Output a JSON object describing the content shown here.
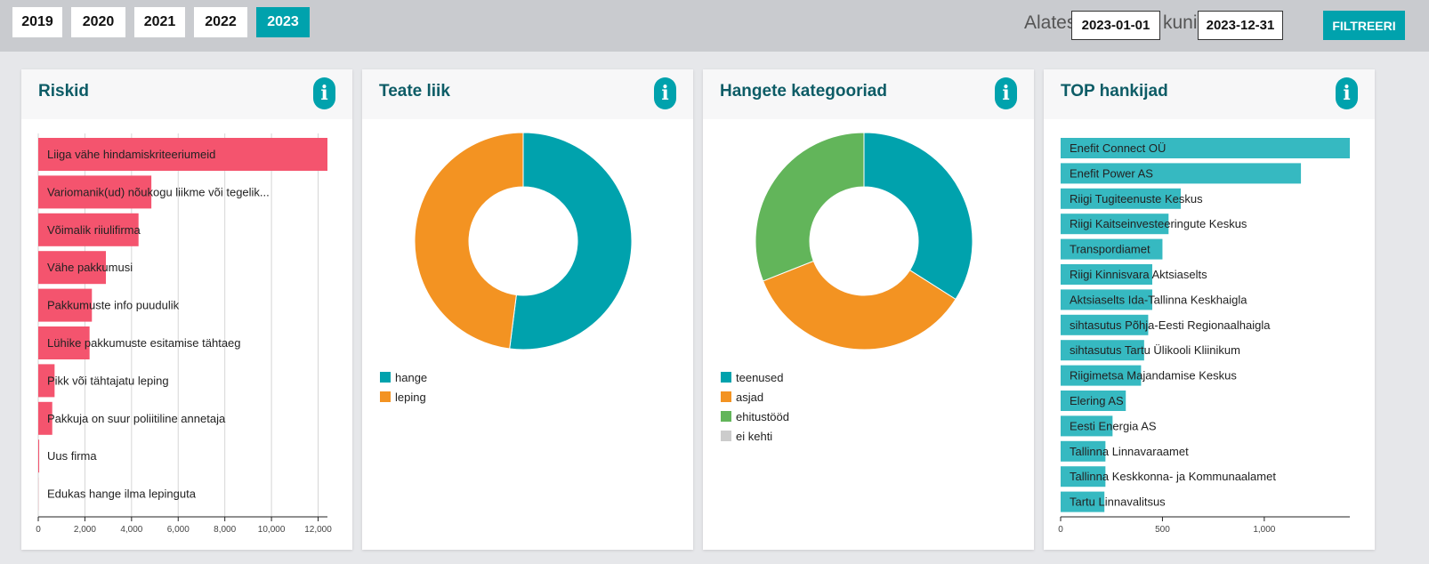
{
  "years": [
    "2019",
    "2020",
    "2021",
    "2022",
    "2023"
  ],
  "active_year": "2023",
  "filter": {
    "from_label": "Alates",
    "from_value": "2023-01-01",
    "to_label": "kuni",
    "to_value": "2023-12-31",
    "button": "FILTREERI"
  },
  "cards": {
    "risks": {
      "title": "Riskid",
      "info": "i"
    },
    "notice_type": {
      "title": "Teate liik",
      "info": "i"
    },
    "categories": {
      "title": "Hangete kategooriad",
      "info": "i"
    },
    "top_suppliers": {
      "title": "TOP hankijad",
      "info": "i"
    }
  },
  "chart_data": [
    {
      "type": "bar",
      "orientation": "horizontal",
      "categories": [
        "Liiga vähe hindamiskriteeriumeid",
        "Variomanik(ud) nõukogu liikme või tegelik...",
        "Võimalik riiulifirma",
        "Vähe pakkumusi",
        "Pakkumuste info puudulik",
        "Lühike pakkumuste esitamise tähtaeg",
        "Pikk või tähtajatu leping",
        "Pakkuja on suur poliitiline annetaja",
        "Uus firma",
        "Edukas hange ilma lepinguta"
      ],
      "values": [
        12400,
        4850,
        4300,
        2900,
        2300,
        2200,
        700,
        600,
        40,
        5
      ],
      "xlim": [
        0,
        12400
      ],
      "xticks": [
        0,
        2000,
        4000,
        6000,
        8000,
        10000,
        12000
      ],
      "xtick_labels": [
        "0",
        "2,000",
        "4,000",
        "6,000",
        "8,000",
        "10,000",
        "12,000"
      ],
      "color": "#f4546e",
      "grid": true
    },
    {
      "type": "pie",
      "donut": true,
      "labels": [
        "hange",
        "leping"
      ],
      "values": [
        52,
        48
      ],
      "colors": [
        "#00a2ad",
        "#f39322"
      ]
    },
    {
      "type": "pie",
      "donut": true,
      "labels": [
        "teenused",
        "asjad",
        "ehitustööd",
        "ei kehti"
      ],
      "values": [
        34,
        35,
        31,
        0
      ],
      "colors": [
        "#00a2ad",
        "#f39322",
        "#62b55a",
        "#cccccc"
      ]
    },
    {
      "type": "bar",
      "orientation": "horizontal",
      "categories": [
        "Enefit Connect OÜ",
        "Enefit Power AS",
        "Riigi Tugiteenuste Keskus",
        "Riigi Kaitseinvesteeringute Keskus",
        "Transpordiamet",
        "Riigi Kinnisvara Aktsiaselts",
        "Aktsiaselts Ida-Tallinna Keskhaigla",
        "sihtasutus Põhja-Eesti Regionaalhaigla",
        "sihtasutus Tartu Ülikooli Kliinikum",
        "Riigimetsa Majandamise Keskus",
        "Elering AS",
        "Eesti Energia AS",
        "Tallinna Linnavaraamet",
        "Tallinna Keskkonna- ja Kommunaalamet",
        "Tartu Linnavalitsus"
      ],
      "values": [
        1420,
        1180,
        590,
        530,
        500,
        450,
        450,
        430,
        410,
        395,
        320,
        255,
        220,
        220,
        215
      ],
      "xlim": [
        0,
        1420
      ],
      "xticks": [
        0,
        500,
        1000
      ],
      "xtick_labels": [
        "0",
        "500",
        "1,000"
      ],
      "color": "#36b9c1",
      "grid": false
    }
  ]
}
